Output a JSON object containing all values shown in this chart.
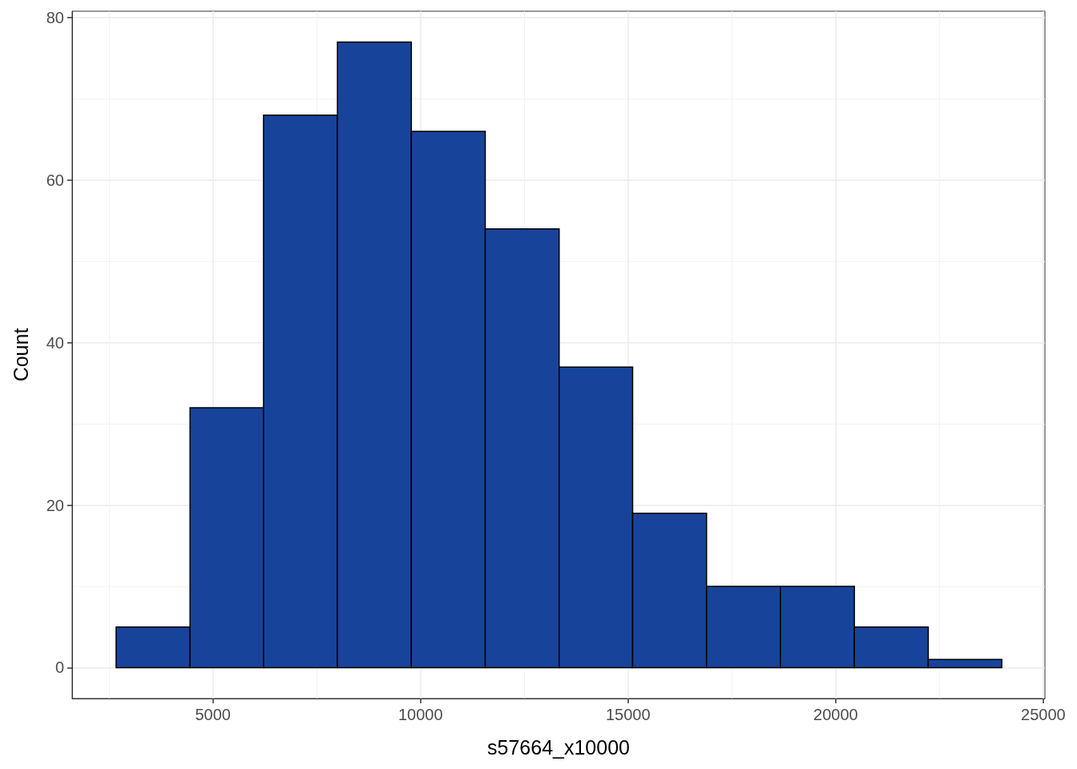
{
  "chart_data": {
    "type": "histogram",
    "xlabel": "s57664_x10000",
    "ylabel": "Count",
    "bins": [
      2670,
      4450,
      6220,
      8000,
      9780,
      11560,
      13340,
      15110,
      16890,
      18670,
      20450,
      22230,
      24000
    ],
    "values": [
      5,
      32,
      68,
      77,
      66,
      54,
      37,
      19,
      10,
      10,
      5,
      1
    ],
    "color": "#17449a",
    "xlim": [
      1610,
      25040
    ],
    "ylim": [
      -3.8,
      80.8
    ],
    "xticks": [
      5000,
      10000,
      15000,
      20000,
      25000
    ],
    "yticks": [
      0,
      20,
      40,
      60,
      80
    ],
    "grid": true
  }
}
